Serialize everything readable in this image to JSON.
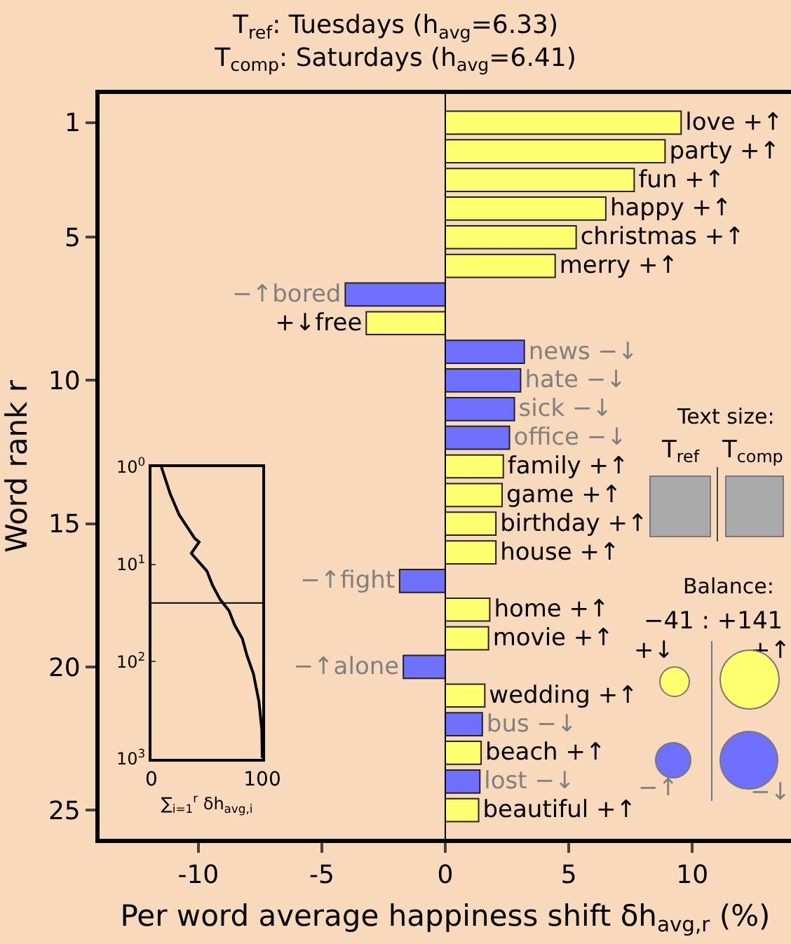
{
  "chart_data": [
    {
      "type": "bar",
      "orientation": "horizontal",
      "title": "T$_{ref}$: Tuesdays (h$_{avg}$=6.33)",
      "subtitle": "T$_{comp}$: Saturdays (h$_{avg}$=6.41)",
      "xlabel": "Per word average happiness shift δh$_{avg,r}$ (%)",
      "ylabel": "Word rank r",
      "categories": [
        "1",
        null,
        null,
        null,
        "5",
        null,
        null,
        null,
        null,
        "10",
        null,
        null,
        null,
        null,
        "15",
        null,
        null,
        null,
        null,
        "20",
        null,
        null,
        null,
        null,
        "25"
      ],
      "values": [
        9.55,
        8.9,
        7.65,
        6.5,
        5.3,
        4.45,
        -4.05,
        -3.2,
        3.2,
        3.05,
        2.8,
        2.6,
        2.35,
        2.3,
        2.05,
        2.05,
        -1.85,
        1.8,
        1.75,
        -1.7,
        1.6,
        1.5,
        1.45,
        1.4,
        1.35
      ],
      "colors": [
        "#ffff70",
        "#ffff70",
        "#ffff70",
        "#ffff70",
        "#ffff70",
        "#ffff70",
        "#7070ff",
        "#ffff70",
        "#7070ff",
        "#7070ff",
        "#7070ff",
        "#7070ff",
        "#ffff70",
        "#ffff70",
        "#ffff70",
        "#ffff70",
        "#7070ff",
        "#ffff70",
        "#ffff70",
        "#7070ff",
        "#ffff70",
        "#7070ff",
        "#ffff70",
        "#7070ff",
        "#ffff70"
      ],
      "value_labels": [
        "love +↑",
        "party +↑",
        "fun +↑",
        "happy +↑",
        "christmas +↑",
        "merry +↑",
        "−↑bored",
        "+↓free",
        "news −↓",
        "hate −↓",
        "sick −↓",
        "office −↓",
        "family +↑",
        "game +↑",
        "birthday +↑",
        "house +↑",
        "−↑fight",
        "home +↑",
        "movie +↑",
        "−↑alone",
        "wedding +↑",
        "bus −↓",
        "beach +↑",
        "lost −↓",
        "beautiful +↑"
      ],
      "xlim": [
        -14,
        14
      ],
      "xticks": [
        -10,
        -5,
        0,
        5,
        10
      ],
      "annotations": [
        "Text size:",
        "T$_{ref}$",
        "T$_{comp}$",
        "Balance:",
        "−41 : +141",
        "+↓",
        "+↑",
        "−↑",
        "−↓"
      ],
      "ref_lines": [
        {
          "axis": "x",
          "value": 0
        }
      ],
      "legend": false,
      "grid": false
    },
    {
      "type": "line",
      "xlabel": "∑$_{i=1}$$^{r}$ δh$_{avg,i}$",
      "log": "y",
      "x": [
        9,
        17,
        25,
        39,
        43,
        36,
        38,
        50,
        55,
        62,
        70,
        75,
        82,
        86,
        92,
        97,
        99.6,
        100
      ],
      "values": [
        1,
        1.9,
        3.1,
        5.4,
        5.9,
        7.7,
        8.2,
        11.7,
        16.3,
        23,
        30,
        42,
        58,
        85,
        133,
        257,
        500,
        980
      ],
      "xlim": [
        0,
        100
      ],
      "xticks": [
        0,
        100
      ],
      "ylim": [
        1000,
        1
      ],
      "yticks": [
        {
          "value": 1,
          "label": "10$^{0}$"
        },
        {
          "value": 10,
          "label": "10$^{1}$"
        },
        {
          "value": 100,
          "label": "10$^{2}$"
        },
        {
          "value": 1000,
          "label": "10$^{3}$"
        }
      ],
      "ref_lines": [
        {
          "axis": "y",
          "value": 25
        }
      ],
      "legend": false,
      "grid": false
    }
  ]
}
